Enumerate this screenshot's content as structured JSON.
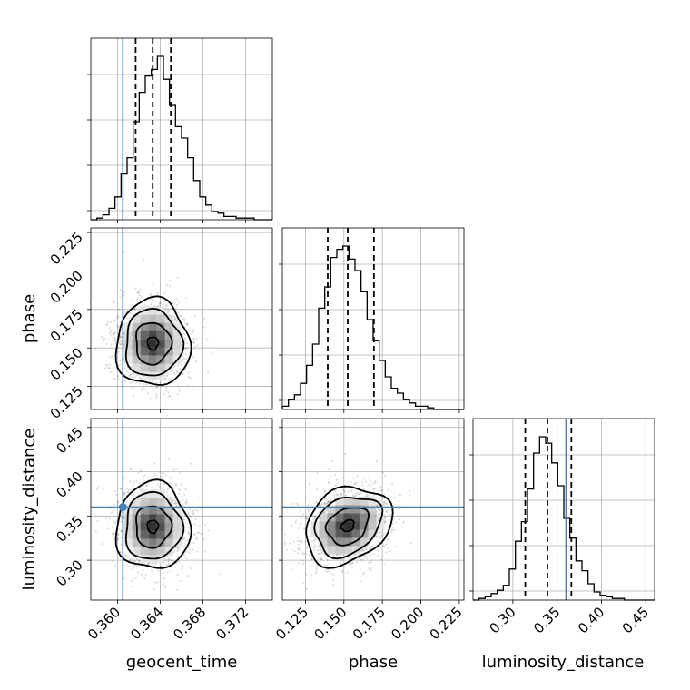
{
  "chart_data": {
    "type": "corner",
    "parameters": [
      "geocent_time",
      "phase",
      "luminosity_distance"
    ],
    "axis_labels": {
      "geocent_time": "geocent_time",
      "phase": "phase",
      "luminosity_distance": "luminosity_distance"
    },
    "grid": true,
    "truth_color": "#4682b4",
    "truths": {
      "geocent_time": 0.3605,
      "phase": null,
      "luminosity_distance": 0.36
    },
    "ranges": {
      "geocent_time": [
        0.3575,
        0.3745
      ],
      "phase": [
        0.11,
        0.228
      ],
      "luminosity_distance": [
        0.255,
        0.46
      ]
    },
    "ticks": {
      "geocent_time": {
        "values": [
          0.36,
          0.364,
          0.368,
          0.372
        ],
        "labels": [
          "0.360",
          "0.364",
          "0.368",
          "0.372"
        ]
      },
      "phase": {
        "values": [
          0.125,
          0.15,
          0.175,
          0.2,
          0.225
        ],
        "labels": [
          "0.125",
          "0.150",
          "0.175",
          "0.200",
          "0.225"
        ]
      },
      "luminosity_distance": {
        "values": [
          0.3,
          0.35,
          0.4,
          0.45
        ],
        "labels": [
          "0.30",
          "0.35",
          "0.40",
          "0.45"
        ]
      }
    },
    "quantiles": {
      "geocent_time": [
        0.3617,
        0.3633,
        0.365
      ],
      "phase": [
        0.1395,
        0.1525,
        0.1695
      ],
      "luminosity_distance": [
        0.314,
        0.339,
        0.366
      ]
    },
    "histograms": {
      "geocent_time": [
        0,
        0.01,
        0.03,
        0.07,
        0.14,
        0.28,
        0.38,
        0.6,
        0.78,
        0.88,
        0.92,
        1.0,
        0.86,
        0.7,
        0.57,
        0.5,
        0.38,
        0.24,
        0.14,
        0.09,
        0.05,
        0.04,
        0.02,
        0.02,
        0.01,
        0.01,
        0.01,
        0,
        0,
        0
      ],
      "phase": [
        0.02,
        0.06,
        0.09,
        0.16,
        0.27,
        0.4,
        0.62,
        0.75,
        0.93,
        0.98,
        1.0,
        0.92,
        0.85,
        0.72,
        0.55,
        0.42,
        0.3,
        0.2,
        0.13,
        0.1,
        0.06,
        0.04,
        0.02,
        0.02,
        0.01,
        0,
        0,
        0,
        0,
        0
      ],
      "luminosity_distance": [
        0,
        0.01,
        0.02,
        0.04,
        0.06,
        0.09,
        0.19,
        0.36,
        0.48,
        0.68,
        0.9,
        1.0,
        0.96,
        0.84,
        0.7,
        0.5,
        0.38,
        0.24,
        0.18,
        0.1,
        0.05,
        0.03,
        0.02,
        0.01,
        0.01,
        0,
        0,
        0,
        0,
        0
      ]
    },
    "joint_means": {
      "geocent_time-phase": [
        0.3633,
        0.153
      ],
      "geocent_time-luminosity_distance": [
        0.3633,
        0.338
      ],
      "phase-luminosity_distance": [
        0.1525,
        0.339
      ]
    }
  }
}
